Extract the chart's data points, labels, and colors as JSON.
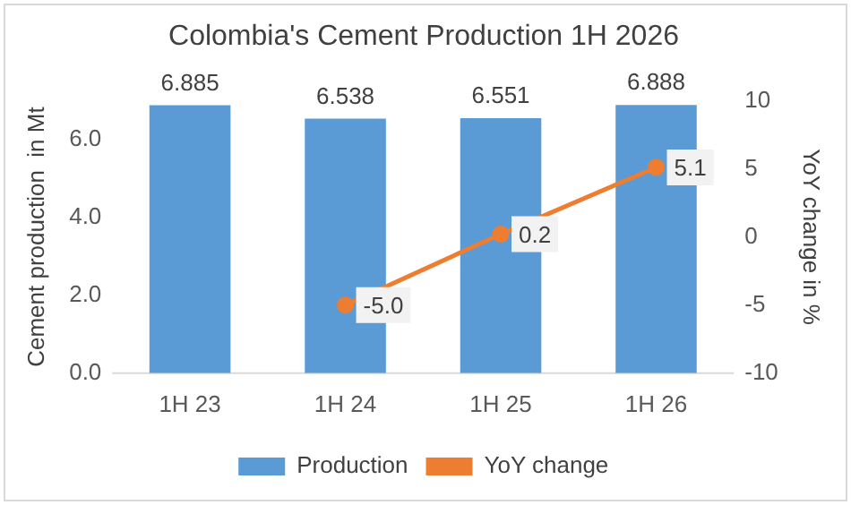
{
  "chart_data": {
    "type": "bar",
    "title": "Colombia's Cement Production 1H 2026",
    "ylabel": "Cement production  in Mt",
    "y2label": "YoY change in %",
    "categories": [
      "1H 23",
      "1H 24",
      "1H 25",
      "1H 26"
    ],
    "series": [
      {
        "name": "Production",
        "color": "#5b9bd5",
        "values": [
          6.885,
          6.538,
          6.551,
          6.888
        ],
        "value_labels": [
          "6.885",
          "6.538",
          "6.551",
          "6.888"
        ]
      },
      {
        "name": "YoY change",
        "type": "line",
        "axis": "y2",
        "color": "#ed7d31",
        "values": [
          null,
          -5.0,
          0.2,
          5.1
        ],
        "value_labels": [
          null,
          "-5.0",
          "0.2",
          "5.1"
        ]
      }
    ],
    "ylim": [
      0,
      7
    ],
    "yticks": [
      {
        "value": 0,
        "label": "0.0"
      },
      {
        "value": 2,
        "label": "2.0"
      },
      {
        "value": 4,
        "label": "4.0"
      },
      {
        "value": 6,
        "label": "6.0"
      }
    ],
    "y2lim": [
      -10,
      10
    ],
    "y2ticks": [
      -10,
      -5,
      0,
      5,
      10
    ],
    "legend": "bottom",
    "marker": "circle",
    "grid": false
  }
}
